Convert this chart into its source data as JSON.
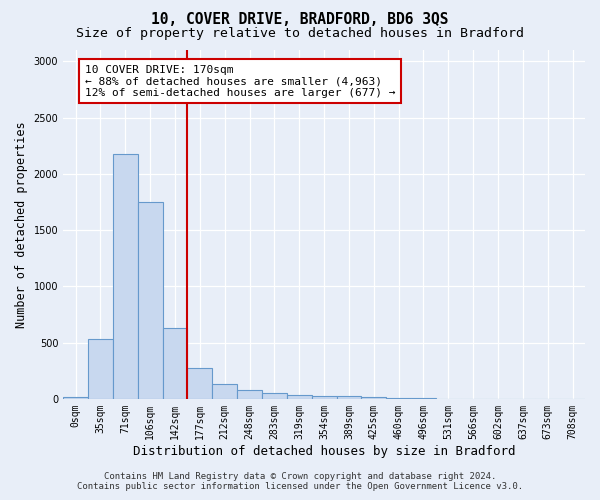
{
  "title": "10, COVER DRIVE, BRADFORD, BD6 3QS",
  "subtitle": "Size of property relative to detached houses in Bradford",
  "xlabel": "Distribution of detached houses by size in Bradford",
  "ylabel": "Number of detached properties",
  "categories": [
    "0sqm",
    "35sqm",
    "71sqm",
    "106sqm",
    "142sqm",
    "177sqm",
    "212sqm",
    "248sqm",
    "283sqm",
    "319sqm",
    "354sqm",
    "389sqm",
    "425sqm",
    "460sqm",
    "496sqm",
    "531sqm",
    "566sqm",
    "602sqm",
    "637sqm",
    "673sqm",
    "708sqm"
  ],
  "values": [
    20,
    530,
    2180,
    1750,
    630,
    270,
    130,
    75,
    55,
    35,
    25,
    25,
    20,
    5,
    3,
    2,
    1,
    1,
    1,
    0,
    0
  ],
  "bar_color": "#c8d8ef",
  "bar_edge_color": "#6699cc",
  "bar_edge_width": 0.8,
  "ylim": [
    0,
    3100
  ],
  "yticks": [
    0,
    500,
    1000,
    1500,
    2000,
    2500,
    3000
  ],
  "red_line_index": 5,
  "red_line_color": "#cc0000",
  "annotation_text": "10 COVER DRIVE: 170sqm\n← 88% of detached houses are smaller (4,963)\n12% of semi-detached houses are larger (677) →",
  "annotation_box_color": "#ffffff",
  "annotation_box_edge_color": "#cc0000",
  "footer_line1": "Contains HM Land Registry data © Crown copyright and database right 2024.",
  "footer_line2": "Contains public sector information licensed under the Open Government Licence v3.0.",
  "background_color": "#e8eef8",
  "plot_bg_color": "#e8eef8",
  "title_fontsize": 10.5,
  "subtitle_fontsize": 9.5,
  "xlabel_fontsize": 9,
  "ylabel_fontsize": 8.5,
  "tick_fontsize": 7,
  "footer_fontsize": 6.5,
  "annotation_fontsize": 8
}
